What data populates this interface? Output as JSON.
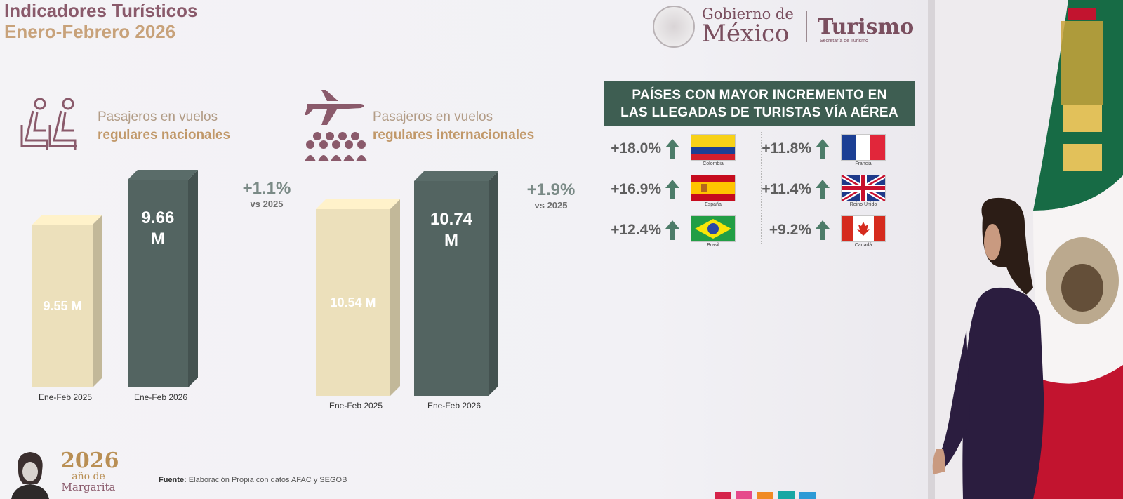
{
  "title": {
    "line1": "Indicadores Turísticos",
    "line2": "Enero-Febrero 2026"
  },
  "header": {
    "gobierno_small": "Gobierno de",
    "gobierno_big": "México",
    "turismo": "Turismo",
    "secretaria": "Secretaría de Turismo"
  },
  "sections": {
    "nacionales": {
      "line1": "Pasajeros en vuelos",
      "line2": "regulares nacionales",
      "change": "+1.1%",
      "vs": "vs 2025"
    },
    "internacionales": {
      "line1": "Pasajeros en vuelos",
      "line2": "regulares internacionales",
      "change": "+1.9%",
      "vs": "vs 2025"
    }
  },
  "chart_data": [
    {
      "type": "bar",
      "title": "Pasajeros en vuelos regulares nacionales",
      "categories": [
        "Ene-Feb 2025",
        "Ene-Feb 2026"
      ],
      "values": [
        9.55,
        9.66
      ],
      "labels": [
        "9.55 M",
        "9.66 M"
      ],
      "unit": "M",
      "colors": [
        "#ece0bb",
        "#536461"
      ]
    },
    {
      "type": "bar",
      "title": "Pasajeros en vuelos regulares internacionales",
      "categories": [
        "Ene-Feb 2025",
        "Ene-Feb 2026"
      ],
      "values": [
        10.54,
        10.74
      ],
      "labels": [
        "10.54 M",
        "10.74 M"
      ],
      "unit": "M",
      "colors": [
        "#ece0bb",
        "#536461"
      ]
    }
  ],
  "countries_panel": {
    "title_line1": "PAÍSES CON MAYOR INCREMENTO EN",
    "title_line2": "LAS LLEGADAS DE TURISTAS VÍA AÉREA",
    "left": [
      {
        "pct": "+18.0%",
        "name": "Colombia",
        "flag": "colombia"
      },
      {
        "pct": "+16.9%",
        "name": "España",
        "flag": "spain"
      },
      {
        "pct": "+12.4%",
        "name": "Brasil",
        "flag": "brazil"
      }
    ],
    "right": [
      {
        "pct": "+11.8%",
        "name": "Francia",
        "flag": "france"
      },
      {
        "pct": "+11.4%",
        "name": "Reino Unido",
        "flag": "uk"
      },
      {
        "pct": "+9.2%",
        "name": "Canadá",
        "flag": "canada"
      }
    ],
    "arrow_color": "#4d7c69"
  },
  "footer": {
    "fuente_label": "Fuente:",
    "fuente_text": "Elaboración Propia con datos AFAC y SEGOB",
    "year": "2026",
    "ano_de": "año de",
    "margarita": "Margarita"
  },
  "colors": {
    "accent_wine": "#7a4f5f",
    "accent_gold": "#c19869",
    "panel_green": "#3e5e52"
  }
}
